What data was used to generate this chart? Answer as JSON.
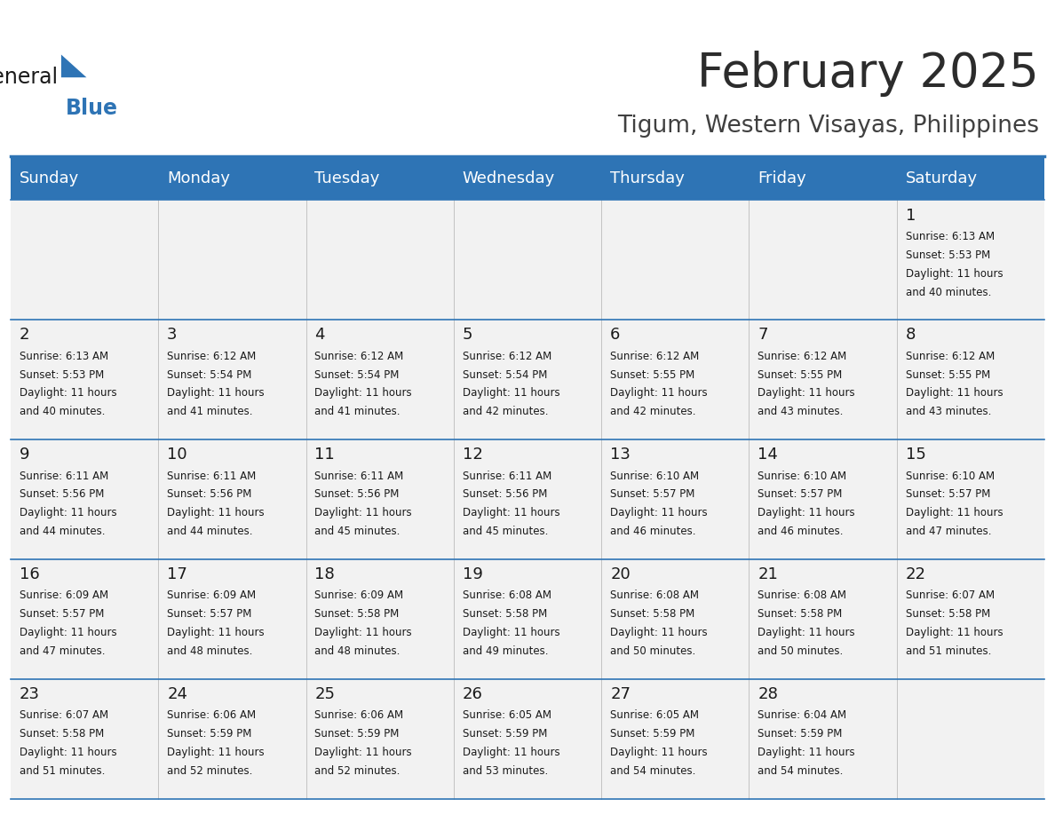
{
  "title": "February 2025",
  "subtitle": "Tigum, Western Visayas, Philippines",
  "header_bg": "#2E74B5",
  "header_text": "#FFFFFF",
  "cell_bg": "#F2F2F2",
  "border_color": "#2E74B5",
  "text_color": "#1A1A1A",
  "day_names": [
    "Sunday",
    "Monday",
    "Tuesday",
    "Wednesday",
    "Thursday",
    "Friday",
    "Saturday"
  ],
  "days": [
    {
      "day": 1,
      "col": 6,
      "row": 0,
      "sunrise": "6:13 AM",
      "sunset": "5:53 PM",
      "daylight": "11 hours and 40 minutes."
    },
    {
      "day": 2,
      "col": 0,
      "row": 1,
      "sunrise": "6:13 AM",
      "sunset": "5:53 PM",
      "daylight": "11 hours and 40 minutes."
    },
    {
      "day": 3,
      "col": 1,
      "row": 1,
      "sunrise": "6:12 AM",
      "sunset": "5:54 PM",
      "daylight": "11 hours and 41 minutes."
    },
    {
      "day": 4,
      "col": 2,
      "row": 1,
      "sunrise": "6:12 AM",
      "sunset": "5:54 PM",
      "daylight": "11 hours and 41 minutes."
    },
    {
      "day": 5,
      "col": 3,
      "row": 1,
      "sunrise": "6:12 AM",
      "sunset": "5:54 PM",
      "daylight": "11 hours and 42 minutes."
    },
    {
      "day": 6,
      "col": 4,
      "row": 1,
      "sunrise": "6:12 AM",
      "sunset": "5:55 PM",
      "daylight": "11 hours and 42 minutes."
    },
    {
      "day": 7,
      "col": 5,
      "row": 1,
      "sunrise": "6:12 AM",
      "sunset": "5:55 PM",
      "daylight": "11 hours and 43 minutes."
    },
    {
      "day": 8,
      "col": 6,
      "row": 1,
      "sunrise": "6:12 AM",
      "sunset": "5:55 PM",
      "daylight": "11 hours and 43 minutes."
    },
    {
      "day": 9,
      "col": 0,
      "row": 2,
      "sunrise": "6:11 AM",
      "sunset": "5:56 PM",
      "daylight": "11 hours and 44 minutes."
    },
    {
      "day": 10,
      "col": 1,
      "row": 2,
      "sunrise": "6:11 AM",
      "sunset": "5:56 PM",
      "daylight": "11 hours and 44 minutes."
    },
    {
      "day": 11,
      "col": 2,
      "row": 2,
      "sunrise": "6:11 AM",
      "sunset": "5:56 PM",
      "daylight": "11 hours and 45 minutes."
    },
    {
      "day": 12,
      "col": 3,
      "row": 2,
      "sunrise": "6:11 AM",
      "sunset": "5:56 PM",
      "daylight": "11 hours and 45 minutes."
    },
    {
      "day": 13,
      "col": 4,
      "row": 2,
      "sunrise": "6:10 AM",
      "sunset": "5:57 PM",
      "daylight": "11 hours and 46 minutes."
    },
    {
      "day": 14,
      "col": 5,
      "row": 2,
      "sunrise": "6:10 AM",
      "sunset": "5:57 PM",
      "daylight": "11 hours and 46 minutes."
    },
    {
      "day": 15,
      "col": 6,
      "row": 2,
      "sunrise": "6:10 AM",
      "sunset": "5:57 PM",
      "daylight": "11 hours and 47 minutes."
    },
    {
      "day": 16,
      "col": 0,
      "row": 3,
      "sunrise": "6:09 AM",
      "sunset": "5:57 PM",
      "daylight": "11 hours and 47 minutes."
    },
    {
      "day": 17,
      "col": 1,
      "row": 3,
      "sunrise": "6:09 AM",
      "sunset": "5:57 PM",
      "daylight": "11 hours and 48 minutes."
    },
    {
      "day": 18,
      "col": 2,
      "row": 3,
      "sunrise": "6:09 AM",
      "sunset": "5:58 PM",
      "daylight": "11 hours and 48 minutes."
    },
    {
      "day": 19,
      "col": 3,
      "row": 3,
      "sunrise": "6:08 AM",
      "sunset": "5:58 PM",
      "daylight": "11 hours and 49 minutes."
    },
    {
      "day": 20,
      "col": 4,
      "row": 3,
      "sunrise": "6:08 AM",
      "sunset": "5:58 PM",
      "daylight": "11 hours and 50 minutes."
    },
    {
      "day": 21,
      "col": 5,
      "row": 3,
      "sunrise": "6:08 AM",
      "sunset": "5:58 PM",
      "daylight": "11 hours and 50 minutes."
    },
    {
      "day": 22,
      "col": 6,
      "row": 3,
      "sunrise": "6:07 AM",
      "sunset": "5:58 PM",
      "daylight": "11 hours and 51 minutes."
    },
    {
      "day": 23,
      "col": 0,
      "row": 4,
      "sunrise": "6:07 AM",
      "sunset": "5:58 PM",
      "daylight": "11 hours and 51 minutes."
    },
    {
      "day": 24,
      "col": 1,
      "row": 4,
      "sunrise": "6:06 AM",
      "sunset": "5:59 PM",
      "daylight": "11 hours and 52 minutes."
    },
    {
      "day": 25,
      "col": 2,
      "row": 4,
      "sunrise": "6:06 AM",
      "sunset": "5:59 PM",
      "daylight": "11 hours and 52 minutes."
    },
    {
      "day": 26,
      "col": 3,
      "row": 4,
      "sunrise": "6:05 AM",
      "sunset": "5:59 PM",
      "daylight": "11 hours and 53 minutes."
    },
    {
      "day": 27,
      "col": 4,
      "row": 4,
      "sunrise": "6:05 AM",
      "sunset": "5:59 PM",
      "daylight": "11 hours and 54 minutes."
    },
    {
      "day": 28,
      "col": 5,
      "row": 4,
      "sunrise": "6:04 AM",
      "sunset": "5:59 PM",
      "daylight": "11 hours and 54 minutes."
    }
  ],
  "num_rows": 5,
  "num_cols": 7,
  "fig_width": 11.88,
  "fig_height": 9.18,
  "logo_general_color": "#1A1A1A",
  "logo_blue_color": "#2E74B5",
  "logo_triangle_color": "#2E74B5",
  "title_color": "#2C2C2C",
  "subtitle_color": "#404040",
  "title_fontsize": 38,
  "subtitle_fontsize": 19,
  "header_fontsize": 13,
  "day_num_fontsize": 13,
  "cell_text_fontsize": 8.5
}
